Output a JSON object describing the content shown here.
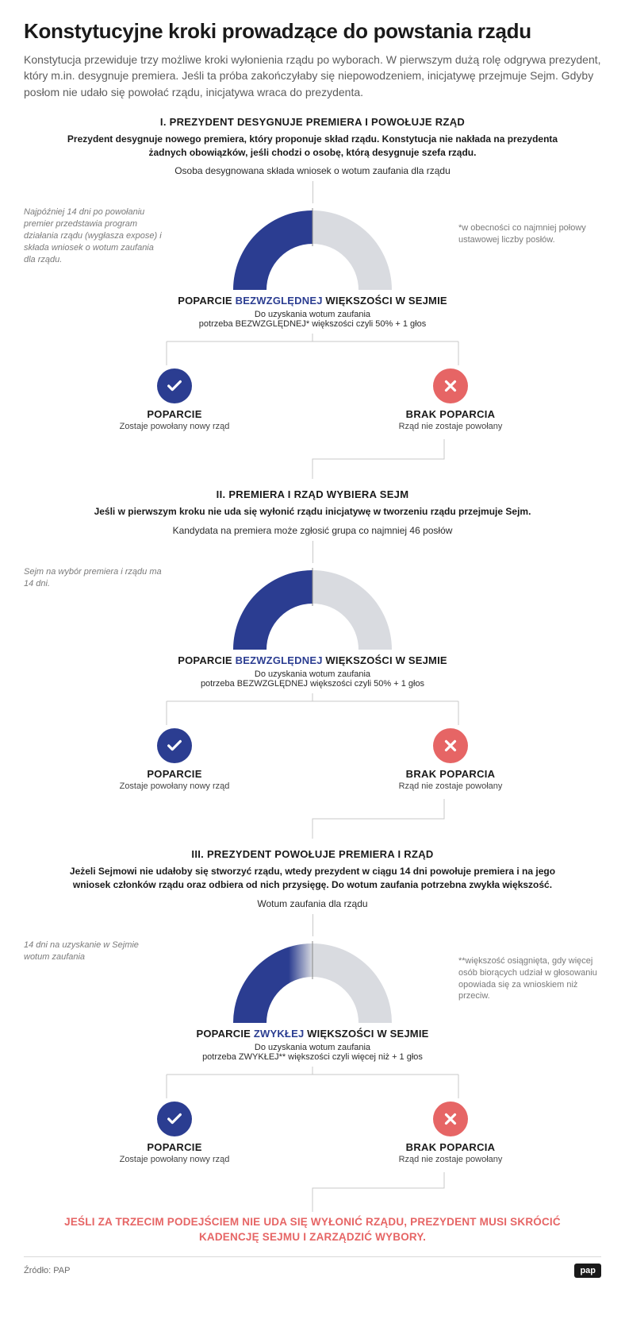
{
  "title": "Konstytucyjne kroki prowadzące do powstania rządu",
  "intro": "Konstytucja przewiduje trzy możliwe kroki wyłonienia rządu po wyborach. W pierwszym dużą rolę odgrywa prezydent, który m.in. desygnuje premiera. Jeśli ta próba zakończyłaby się niepowodzeniem, inicjatywę przejmuje Sejm. Gdyby posłom nie udało się powołać rządu, inicjatywa wraca do prezydenta.",
  "colors": {
    "accent": "#2b3d91",
    "gauge_empty": "#d9dbe0",
    "fail": "#e66565",
    "line": "#c9c9c9",
    "text": "#1a1a1a"
  },
  "steps": [
    {
      "heading": "I. PREZYDENT DESYGNUJE PREMIERA I POWOŁUJE RZĄD",
      "desc": "Prezydent desygnuje nowego premiera, który proponuje skład rządu. Konstytucja nie nakłada na prezydenta żadnych obowiązków, jeśli chodzi o osobę, którą desygnuje szefa rządu.",
      "intro_line": "Osoba desygnowana składa wniosek o wotum zaufania dla rządu",
      "left_note": "Najpóźniej 14 dni po powołaniu premier przedstawia program działania rządu (wygłasza expose) i składa wniosek o wotum zaufania dla rządu.",
      "right_note": "*w obecności co najmniej połowy ustawowej liczby posłów.",
      "gauge": {
        "fill_percent": 50,
        "fill_color": "#2b3d91",
        "empty_color": "#d9dbe0"
      },
      "majority_pre": "POPARCIE ",
      "majority_hl": "BEZWZGLĘDNEJ",
      "majority_post": " WIĘKSZOŚCI W SEJMIE",
      "majority_sub1": "Do uzyskania wotum zaufania",
      "majority_sub2": "potrzeba BEZWZGLĘDNEJ* większości czyli 50% + 1  głos",
      "yes": {
        "title": "POPARCIE",
        "sub": "Zostaje powołany nowy rząd"
      },
      "no": {
        "title": "BRAK POPARCIA",
        "sub": "Rząd nie zostaje powołany"
      }
    },
    {
      "heading": "II. PREMIERA I RZĄD WYBIERA SEJM",
      "desc": "Jeśli w pierwszym kroku nie uda się wyłonić rządu inicjatywę w tworzeniu rządu przejmuje Sejm.",
      "intro_line": "Kandydata na premiera może zgłosić grupa co najmniej 46 posłów",
      "left_note": "Sejm na wybór premiera i rządu ma 14 dni.",
      "right_note": "",
      "gauge": {
        "fill_percent": 50,
        "fill_color": "#2b3d91",
        "empty_color": "#d9dbe0"
      },
      "majority_pre": "POPARCIE ",
      "majority_hl": "BEZWZGLĘDNEJ",
      "majority_post": " WIĘKSZOŚCI W SEJMIE",
      "majority_sub1": "Do uzyskania wotum zaufania",
      "majority_sub2": "potrzeba BEZWZGLĘDNEJ większości czyli 50% + 1  głos",
      "yes": {
        "title": "POPARCIE",
        "sub": "Zostaje powołany nowy rząd"
      },
      "no": {
        "title": "BRAK POPARCIA",
        "sub": "Rząd nie zostaje powołany"
      }
    },
    {
      "heading": "III. PREZYDENT POWOŁUJE PREMIERA I RZĄD",
      "desc": "Jeżeli Sejmowi nie udałoby się stworzyć rządu, wtedy prezydent w ciągu 14 dni powołuje premiera i na jego wniosek członków rządu oraz odbiera od nich przysięgę. Do wotum zaufania potrzebna zwykła większość.",
      "intro_line": "Wotum zaufania dla rządu",
      "left_note": "14 dni na uzyskanie w Sejmie wotum zaufania",
      "right_note": "**większość osiągnięta, gdy więcej osób biorących udział w głosowaniu opowiada się za wnioskiem niż przeciw.",
      "gauge": {
        "fill_percent": 50,
        "fill_color": "#2b3d91",
        "empty_color": "#d9dbe0",
        "gradient": true
      },
      "majority_pre": "POPARCIE ",
      "majority_hl": "ZWYKŁEJ",
      "majority_post": " WIĘKSZOŚCI W SEJMIE",
      "majority_sub1": "Do uzyskania wotum zaufania",
      "majority_sub2": "potrzeba ZWYKŁEJ** większości czyli więcej niż + 1  głos",
      "yes": {
        "title": "POPARCIE",
        "sub": "Zostaje powołany nowy rząd"
      },
      "no": {
        "title": "BRAK POPARCIA",
        "sub": "Rząd nie zostaje powołany"
      }
    }
  ],
  "final_warning": "JEŚLI ZA TRZECIM PODEJŚCIEM NIE UDA SIĘ WYŁONIĆ RZĄDU, PREZYDENT MUSI SKRÓCIĆ KADENCJĘ SEJMU I ZARZĄDZIĆ WYBORY.",
  "source_label": "Źródło: PAP",
  "logo": "pap"
}
